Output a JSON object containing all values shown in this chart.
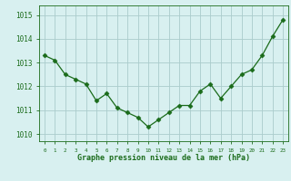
{
  "x": [
    0,
    1,
    2,
    3,
    4,
    5,
    6,
    7,
    8,
    9,
    10,
    11,
    12,
    13,
    14,
    15,
    16,
    17,
    18,
    19,
    20,
    21,
    22,
    23
  ],
  "y": [
    1013.3,
    1013.1,
    1012.5,
    1012.3,
    1012.1,
    1011.4,
    1011.7,
    1011.1,
    1010.9,
    1010.7,
    1010.3,
    1010.6,
    1010.9,
    1011.2,
    1011.2,
    1011.8,
    1012.1,
    1011.5,
    1012.0,
    1012.5,
    1012.7,
    1013.3,
    1014.1,
    1014.8
  ],
  "line_color": "#1a6b1a",
  "marker": "D",
  "marker_size": 2.5,
  "bg_color": "#d8f0f0",
  "grid_color": "#aacccc",
  "ylabel_ticks": [
    1010,
    1011,
    1012,
    1013,
    1014,
    1015
  ],
  "ylim": [
    1009.7,
    1015.4
  ],
  "xlim": [
    -0.5,
    23.5
  ],
  "xlabel": "Graphe pression niveau de la mer (hPa)",
  "xlabel_color": "#1a6b1a",
  "tick_label_color": "#1a6b1a",
  "font_family": "monospace",
  "ytick_fontsize": 5.5,
  "xtick_fontsize": 4.2,
  "xlabel_fontsize": 6.0
}
